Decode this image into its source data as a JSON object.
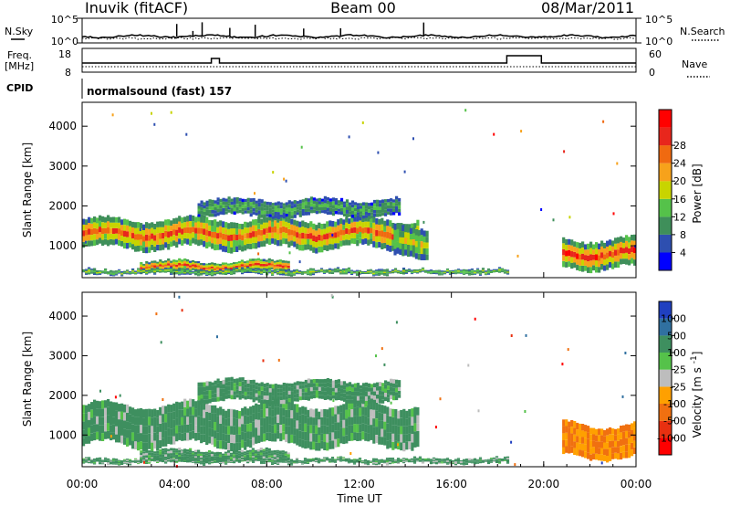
{
  "header": {
    "station": "Inuvik (fitACF)",
    "beam": "Beam 00",
    "date": "08/Mar/2011"
  },
  "noise_panel": {
    "left_label": "N.Sky",
    "left_ticks": [
      "10^5",
      "10^0"
    ],
    "right_label": "N.Search",
    "right_ticks": [
      "10^5",
      "10^0"
    ]
  },
  "freq_panel": {
    "left_label_1": "Freq.",
    "left_label_2": "[MHz]",
    "left_ticks": [
      "18",
      "8"
    ],
    "right_label": "Nave",
    "right_ticks": [
      "60",
      "0"
    ]
  },
  "cpid": {
    "label": "CPID",
    "value": "normalsound (fast) 157"
  },
  "time_axis": {
    "ticks": [
      "00:00",
      "04:00",
      "08:00",
      "12:00",
      "16:00",
      "20:00",
      "00:00"
    ],
    "label": "Time UT"
  },
  "chart_data": [
    {
      "type": "heatmap",
      "name": "power",
      "ylabel": "Slant Range [km]",
      "y_ticks": [
        "1000",
        "2000",
        "3000",
        "4000"
      ],
      "ylim": [
        200,
        4600
      ],
      "x_range_hours": [
        0,
        24
      ],
      "colorbar_label": "Power [dB]",
      "colorbar_ticks": [
        "4",
        "8",
        "12",
        "16",
        "20",
        "24",
        "28"
      ],
      "colors": [
        "#0000ff",
        "#2e4fb0",
        "#3f8f5a",
        "#55c24a",
        "#c8d400",
        "#f7a21b",
        "#f06a10",
        "#e8261c",
        "#ff0000"
      ],
      "echo_regions": [
        {
          "t0": 0.0,
          "t1": 14.6,
          "r0": 900,
          "r1": 1700,
          "core": 0.75
        },
        {
          "t0": 2.5,
          "t1": 9.0,
          "r0": 300,
          "r1": 650,
          "core": 0.8
        },
        {
          "t0": 0.0,
          "t1": 18.5,
          "r0": 250,
          "r1": 450,
          "core": 0.35
        },
        {
          "t0": 5.0,
          "t1": 13.8,
          "r0": 1700,
          "r1": 2200,
          "core": 0.2
        },
        {
          "t0": 13.5,
          "t1": 15.0,
          "r0": 650,
          "r1": 1500,
          "core": 0.45
        },
        {
          "t0": 20.8,
          "t1": 24.0,
          "r0": 400,
          "r1": 1200,
          "core": 0.85
        }
      ]
    },
    {
      "type": "heatmap",
      "name": "velocity",
      "ylabel": "Slant Range [km]",
      "y_ticks": [
        "1000",
        "2000",
        "3000",
        "4000"
      ],
      "ylim": [
        200,
        4600
      ],
      "x_range_hours": [
        0,
        24
      ],
      "colorbar_label": "Velocity [m s^-1]",
      "colorbar_ticks": [
        "1000",
        "500",
        "100",
        "25",
        "-25",
        "-100",
        "-500",
        "-1000"
      ],
      "colors": [
        "#2040c0",
        "#3070a0",
        "#3e8f5f",
        "#55c24a",
        "#bdbdbd",
        "#ffa000",
        "#f07010",
        "#e83010",
        "#ff0000"
      ],
      "echo_regions": [
        {
          "t0": 0.0,
          "t1": 14.6,
          "r0": 700,
          "r1": 1800,
          "core": 0.1
        },
        {
          "t0": 2.5,
          "t1": 9.0,
          "r0": 300,
          "r1": 650,
          "core": 0.1
        },
        {
          "t0": 0.0,
          "t1": 18.5,
          "r0": 250,
          "r1": 450,
          "core": 0.1
        },
        {
          "t0": 5.0,
          "t1": 13.8,
          "r0": 1800,
          "r1": 2400,
          "core": 0.1
        },
        {
          "t0": 20.8,
          "t1": 24.0,
          "r0": 400,
          "r1": 1300,
          "core": 0.9
        }
      ]
    }
  ]
}
